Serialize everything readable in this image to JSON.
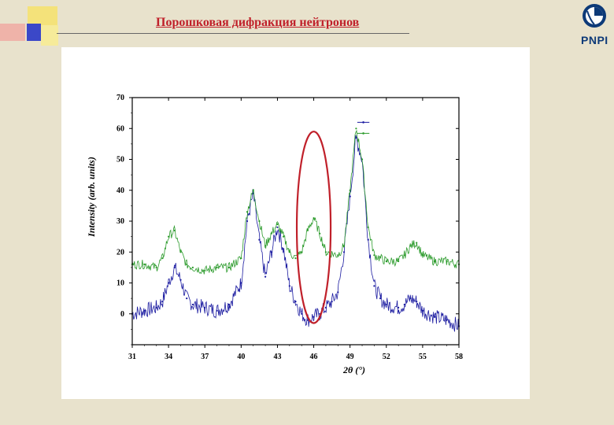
{
  "slide": {
    "title": "Порошковая дифракция нейтронов",
    "logo_text": "PNPI"
  },
  "colors": {
    "title": "#c0202a",
    "series_blue": "#1a1aa0",
    "series_green": "#2a9a2a",
    "highlight_ellipse": "#c0202a",
    "logo": "#0d3a78"
  },
  "chart_data": {
    "type": "line",
    "xlabel": "2θ (°)",
    "ylabel": "Intensity (arb. units)",
    "xlim": [
      31,
      58
    ],
    "ylim": [
      -10,
      70
    ],
    "x_ticks": [
      "31",
      "34",
      "37",
      "40",
      "43",
      "46",
      "49",
      "52",
      "55",
      "58"
    ],
    "y_ticks": [
      "0",
      "10",
      "20",
      "30",
      "40",
      "50",
      "60",
      "70"
    ],
    "legend_position": "top-right",
    "series": [
      {
        "color": "#1a1aa0",
        "points": [
          [
            31,
            0
          ],
          [
            32,
            1
          ],
          [
            33,
            2
          ],
          [
            33.5,
            4
          ],
          [
            34,
            10
          ],
          [
            34.5,
            15
          ],
          [
            35,
            11
          ],
          [
            35.5,
            5
          ],
          [
            36,
            3
          ],
          [
            37,
            2
          ],
          [
            38,
            1
          ],
          [
            39,
            3
          ],
          [
            40,
            10
          ],
          [
            40.5,
            30
          ],
          [
            41,
            39
          ],
          [
            41.5,
            24
          ],
          [
            42,
            12
          ],
          [
            42.5,
            20
          ],
          [
            43,
            28
          ],
          [
            43.5,
            21
          ],
          [
            44,
            9
          ],
          [
            44.5,
            4
          ],
          [
            45,
            0
          ],
          [
            45.5,
            -2
          ],
          [
            46,
            -1
          ],
          [
            46.5,
            0
          ],
          [
            47,
            2
          ],
          [
            47.5,
            4
          ],
          [
            48,
            7
          ],
          [
            48.5,
            20
          ],
          [
            49,
            38
          ],
          [
            49.5,
            57
          ],
          [
            50,
            50
          ],
          [
            50.5,
            24
          ],
          [
            51,
            9
          ],
          [
            51.5,
            5
          ],
          [
            52,
            3
          ],
          [
            53,
            2
          ],
          [
            53.5,
            3
          ],
          [
            54,
            5
          ],
          [
            54.5,
            4
          ],
          [
            55,
            1
          ],
          [
            56,
            -1
          ],
          [
            57,
            -2
          ],
          [
            58,
            -4
          ]
        ]
      },
      {
        "color": "#2a9a2a",
        "points": [
          [
            31,
            16
          ],
          [
            32,
            16
          ],
          [
            33,
            15
          ],
          [
            33.5,
            18
          ],
          [
            34,
            25
          ],
          [
            34.5,
            27
          ],
          [
            35,
            20
          ],
          [
            35.5,
            16
          ],
          [
            36,
            15
          ],
          [
            37,
            14
          ],
          [
            38,
            15
          ],
          [
            39,
            15
          ],
          [
            40,
            18
          ],
          [
            40.5,
            33
          ],
          [
            41,
            40
          ],
          [
            41.5,
            30
          ],
          [
            42,
            22
          ],
          [
            42.5,
            26
          ],
          [
            43,
            29
          ],
          [
            43.5,
            25
          ],
          [
            44,
            20
          ],
          [
            44.5,
            18
          ],
          [
            45,
            20
          ],
          [
            45.5,
            27
          ],
          [
            46,
            31
          ],
          [
            46.5,
            26
          ],
          [
            47,
            20
          ],
          [
            48,
            19
          ],
          [
            48.5,
            22
          ],
          [
            49,
            40
          ],
          [
            49.5,
            60
          ],
          [
            50,
            50
          ],
          [
            50.5,
            28
          ],
          [
            51,
            19
          ],
          [
            52,
            17
          ],
          [
            53,
            17
          ],
          [
            53.5,
            19
          ],
          [
            54,
            22
          ],
          [
            54.5,
            23
          ],
          [
            55,
            19
          ],
          [
            56,
            17
          ],
          [
            57,
            17
          ],
          [
            58,
            16
          ]
        ]
      }
    ],
    "highlight": {
      "x_center": 46,
      "y_center": 28,
      "x_radius": 1.4,
      "y_radius": 31
    }
  }
}
